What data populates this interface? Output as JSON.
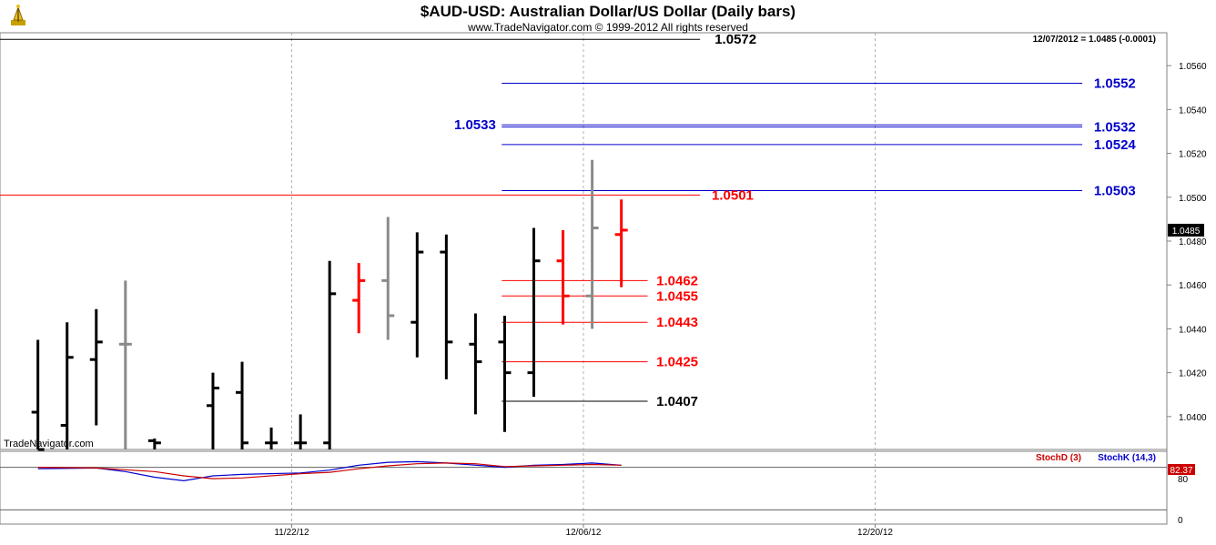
{
  "chart_data": {
    "type": "ohlc",
    "title": "$AUD-USD:  Australian Dollar/US Dollar  (Daily bars)",
    "subtitle": "www.TradeNavigator.com © 1999-2012 All rights reserved",
    "last_quote": "12/07/2012 = 1.0485 (-0.0001)",
    "last_price_tag": "1.0485",
    "watermark": "TradeNavigator.com",
    "y_axis": {
      "min": 1.0385,
      "max": 1.0575,
      "ticks": [
        "1.0400",
        "1.0420",
        "1.0440",
        "1.0460",
        "1.0480",
        "1.0500",
        "1.0520",
        "1.0540",
        "1.0560"
      ]
    },
    "x_axis": {
      "min": 0,
      "max": 40,
      "labels": [
        {
          "x": 10,
          "text": "11/22/12"
        },
        {
          "x": 20,
          "text": "12/06/12"
        },
        {
          "x": 30,
          "text": "12/20/12"
        }
      ]
    },
    "colors": {
      "black": "#000000",
      "red": "#ff0000",
      "gray": "#8a8a8a",
      "blue": "#0000cc"
    },
    "bars": [
      {
        "x": 1.3,
        "o": 1.0402,
        "h": 1.0435,
        "l": 1.0385,
        "c": 1.0385,
        "color": "black"
      },
      {
        "x": 2.3,
        "o": 1.0396,
        "h": 1.0443,
        "l": 1.0385,
        "c": 1.0427,
        "color": "black"
      },
      {
        "x": 3.3,
        "o": 1.0426,
        "h": 1.0449,
        "l": 1.0396,
        "c": 1.0434,
        "color": "black"
      },
      {
        "x": 4.3,
        "o": 1.0433,
        "h": 1.0462,
        "l": 1.0385,
        "c": 1.0433,
        "color": "gray"
      },
      {
        "x": 5.3,
        "o": 1.0389,
        "h": 1.039,
        "l": 1.0385,
        "c": 1.0388,
        "color": "black"
      },
      {
        "x": 7.3,
        "o": 1.0405,
        "h": 1.042,
        "l": 1.0385,
        "c": 1.0413,
        "color": "black"
      },
      {
        "x": 8.3,
        "o": 1.0411,
        "h": 1.0425,
        "l": 1.0385,
        "c": 1.0388,
        "color": "black"
      },
      {
        "x": 9.3,
        "o": 1.0388,
        "h": 1.0395,
        "l": 1.0385,
        "c": 1.0388,
        "color": "black"
      },
      {
        "x": 10.3,
        "o": 1.0388,
        "h": 1.0401,
        "l": 1.0385,
        "c": 1.0388,
        "color": "black"
      },
      {
        "x": 11.3,
        "o": 1.0388,
        "h": 1.0471,
        "l": 1.0385,
        "c": 1.0456,
        "color": "black"
      },
      {
        "x": 12.3,
        "o": 1.0453,
        "h": 1.047,
        "l": 1.0438,
        "c": 1.0462,
        "color": "red"
      },
      {
        "x": 13.3,
        "o": 1.0462,
        "h": 1.0491,
        "l": 1.0435,
        "c": 1.0446,
        "color": "gray"
      },
      {
        "x": 14.3,
        "o": 1.0443,
        "h": 1.0484,
        "l": 1.0427,
        "c": 1.0475,
        "color": "black"
      },
      {
        "x": 15.3,
        "o": 1.0475,
        "h": 1.0483,
        "l": 1.0417,
        "c": 1.0434,
        "color": "black"
      },
      {
        "x": 16.3,
        "o": 1.0433,
        "h": 1.0447,
        "l": 1.0401,
        "c": 1.0425,
        "color": "black"
      },
      {
        "x": 17.3,
        "o": 1.0434,
        "h": 1.0446,
        "l": 1.0393,
        "c": 1.042,
        "color": "black"
      },
      {
        "x": 18.3,
        "o": 1.042,
        "h": 1.0486,
        "l": 1.0409,
        "c": 1.0471,
        "color": "black"
      },
      {
        "x": 19.3,
        "o": 1.0471,
        "h": 1.0485,
        "l": 1.0442,
        "c": 1.0455,
        "color": "red"
      },
      {
        "x": 20.3,
        "o": 1.0455,
        "h": 1.0517,
        "l": 1.044,
        "c": 1.0486,
        "color": "gray"
      },
      {
        "x": 21.3,
        "o": 1.0483,
        "h": 1.0499,
        "l": 1.0459,
        "c": 1.0485,
        "color": "red"
      }
    ],
    "levels": [
      {
        "value": 1.0572,
        "label": "1.0572",
        "color": "black",
        "x1": 0,
        "x2": 24.0,
        "label_x": 24.5,
        "label_side": "right"
      },
      {
        "value": 1.0552,
        "label": "1.0552",
        "color": "blue",
        "x1": 17.2,
        "x2": 37.1,
        "label_x": 37.5,
        "label_side": "right"
      },
      {
        "value": 1.0533,
        "label": "1.0533",
        "color": "blue",
        "x1": 17.2,
        "x2": 37.1,
        "label_x": 17.0,
        "label_side": "left"
      },
      {
        "value": 1.0532,
        "label": "1.0532",
        "color": "blue",
        "x1": 17.2,
        "x2": 37.1,
        "label_x": 37.5,
        "label_side": "right"
      },
      {
        "value": 1.0524,
        "label": "1.0524",
        "color": "blue",
        "x1": 17.2,
        "x2": 37.1,
        "label_x": 37.5,
        "label_side": "right"
      },
      {
        "value": 1.0503,
        "label": "1.0503",
        "color": "blue",
        "x1": 17.2,
        "x2": 37.1,
        "label_x": 37.5,
        "label_side": "right"
      },
      {
        "value": 1.0501,
        "label": "1.0501",
        "color": "red",
        "x1": 0,
        "x2": 24.0,
        "label_x": 24.4,
        "label_side": "right"
      },
      {
        "value": 1.0462,
        "label": "1.0462",
        "color": "red",
        "x1": 17.2,
        "x2": 22.2,
        "label_x": 22.5,
        "label_side": "right"
      },
      {
        "value": 1.0455,
        "label": "1.0455",
        "color": "red",
        "x1": 17.2,
        "x2": 22.2,
        "label_x": 22.5,
        "label_side": "right"
      },
      {
        "value": 1.0443,
        "label": "1.0443",
        "color": "red",
        "x1": 17.2,
        "x2": 22.2,
        "label_x": 22.5,
        "label_side": "right"
      },
      {
        "value": 1.0425,
        "label": "1.0425",
        "color": "red",
        "x1": 17.2,
        "x2": 22.2,
        "label_x": 22.5,
        "label_side": "right"
      },
      {
        "value": 1.0407,
        "label": "1.0407",
        "color": "black",
        "x1": 17.2,
        "x2": 22.2,
        "label_x": 22.5,
        "label_side": "right"
      }
    ],
    "stochastic": {
      "d_label": "StochD (3)",
      "k_label": "StochK (14,3)",
      "value_tag": "82.37",
      "tick_80": "80",
      "tick_0": "0",
      "y_range": [
        0,
        100
      ],
      "ref_lines": [
        80,
        20
      ],
      "d_points": [
        [
          1.3,
          80
        ],
        [
          3.3,
          79
        ],
        [
          5.3,
          74
        ],
        [
          6.3,
          68
        ],
        [
          7.3,
          64
        ],
        [
          8.3,
          65
        ],
        [
          10.3,
          71
        ],
        [
          11.3,
          73
        ],
        [
          12.3,
          78
        ],
        [
          13.3,
          82
        ],
        [
          14.3,
          85
        ],
        [
          15.3,
          86
        ],
        [
          16.3,
          85
        ],
        [
          17.3,
          81
        ],
        [
          18.3,
          82
        ],
        [
          19.3,
          83
        ],
        [
          20.3,
          84
        ],
        [
          21.3,
          83
        ]
      ],
      "k_points": [
        [
          1.3,
          78
        ],
        [
          3.3,
          79
        ],
        [
          4.3,
          74
        ],
        [
          5.3,
          66
        ],
        [
          6.3,
          61
        ],
        [
          7.3,
          68
        ],
        [
          8.3,
          70
        ],
        [
          10.3,
          72
        ],
        [
          11.3,
          76
        ],
        [
          12.3,
          83
        ],
        [
          13.3,
          87
        ],
        [
          14.3,
          88
        ],
        [
          15.3,
          86
        ],
        [
          17.3,
          80
        ],
        [
          18.3,
          83
        ],
        [
          19.3,
          84
        ],
        [
          20.3,
          86
        ],
        [
          21.3,
          83
        ]
      ]
    }
  }
}
